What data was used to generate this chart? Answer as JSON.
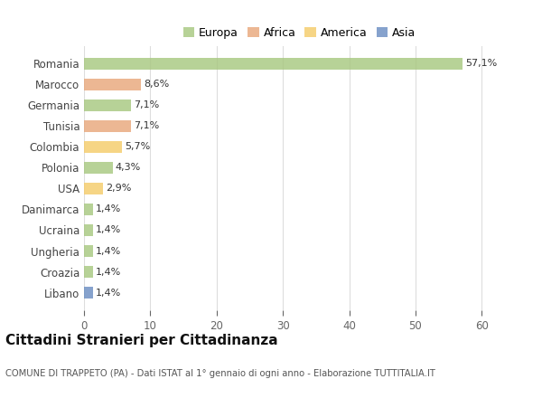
{
  "countries": [
    "Romania",
    "Marocco",
    "Germania",
    "Tunisia",
    "Colombia",
    "Polonia",
    "USA",
    "Danimarca",
    "Ucraina",
    "Ungheria",
    "Croazia",
    "Libano"
  ],
  "values": [
    57.1,
    8.6,
    7.1,
    7.1,
    5.7,
    4.3,
    2.9,
    1.4,
    1.4,
    1.4,
    1.4,
    1.4
  ],
  "labels": [
    "57,1%",
    "8,6%",
    "7,1%",
    "7,1%",
    "5,7%",
    "4,3%",
    "2,9%",
    "1,4%",
    "1,4%",
    "1,4%",
    "1,4%",
    "1,4%"
  ],
  "continents": [
    "Europa",
    "Africa",
    "Europa",
    "Africa",
    "America",
    "Europa",
    "America",
    "Europa",
    "Europa",
    "Europa",
    "Europa",
    "Asia"
  ],
  "colors": {
    "Europa": "#a8c880",
    "Africa": "#e8a87c",
    "America": "#f5cc6a",
    "Asia": "#6b8ec2"
  },
  "title": "Cittadini Stranieri per Cittadinanza",
  "subtitle": "COMUNE DI TRAPPETO (PA) - Dati ISTAT al 1° gennaio di ogni anno - Elaborazione TUTTITALIA.IT",
  "xlim": [
    0,
    65
  ],
  "xticks": [
    0,
    10,
    20,
    30,
    40,
    50,
    60
  ],
  "background_color": "#ffffff",
  "grid_color": "#dddddd",
  "bar_alpha": 0.82,
  "bar_height": 0.55
}
